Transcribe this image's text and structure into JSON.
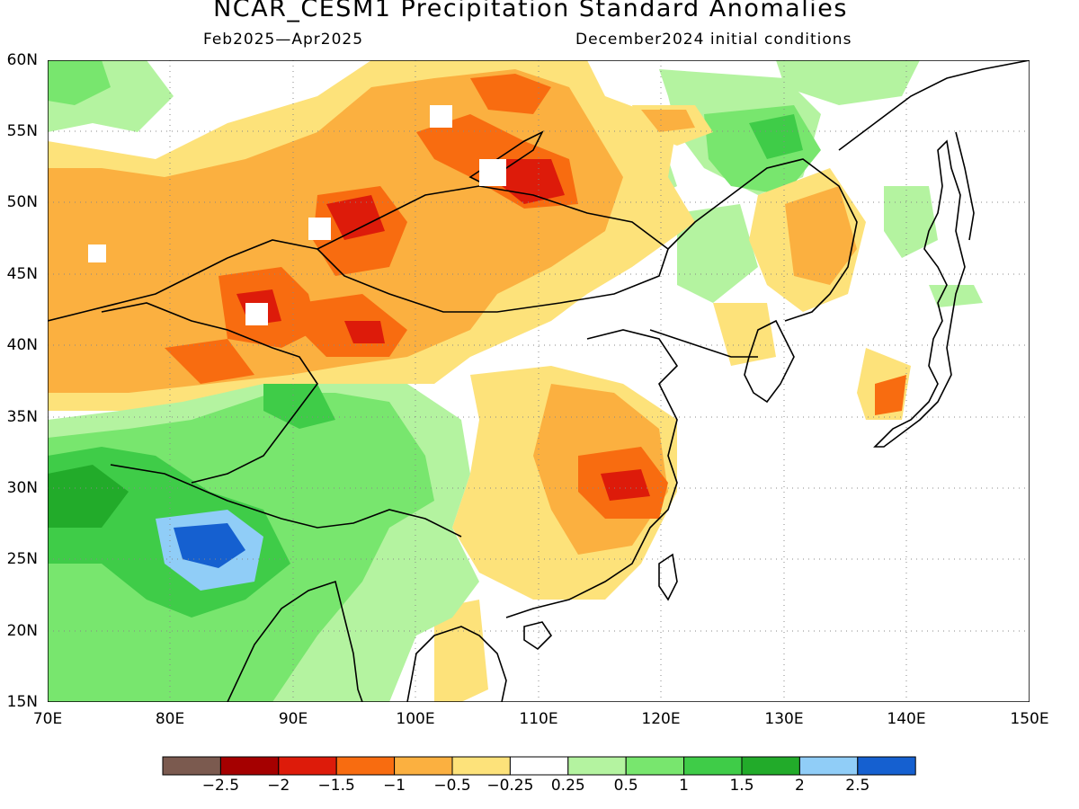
{
  "title": "NCAR_CESM1 Precipitation Standard Anomalies",
  "subtitle_left": "Feb2025—Apr2025",
  "subtitle_right": "December2024 initial conditions",
  "map": {
    "lat_labels": [
      "60N",
      "55N",
      "50N",
      "45N",
      "40N",
      "35N",
      "30N",
      "25N",
      "20N",
      "15N"
    ],
    "lon_labels": [
      "70E",
      "80E",
      "90E",
      "100E",
      "110E",
      "120E",
      "130E",
      "140E",
      "150E"
    ],
    "lat_range": [
      15,
      60
    ],
    "lon_range": [
      70,
      150
    ]
  },
  "colorbar": {
    "colors": [
      "#7b5a4f",
      "#a50000",
      "#dd1b0a",
      "#f86c10",
      "#fbb040",
      "#fde27a",
      "#ffffff",
      "#b4f3a0",
      "#78e66e",
      "#3fcc48",
      "#22ab2a",
      "#90cdf7",
      "#1560d0"
    ],
    "labels": [
      "−2.5",
      "−2",
      "−1.5",
      "−1",
      "−0.5",
      "−0.25",
      "0.25",
      "0.5",
      "1",
      "1.5",
      "2",
      "2.5"
    ]
  }
}
